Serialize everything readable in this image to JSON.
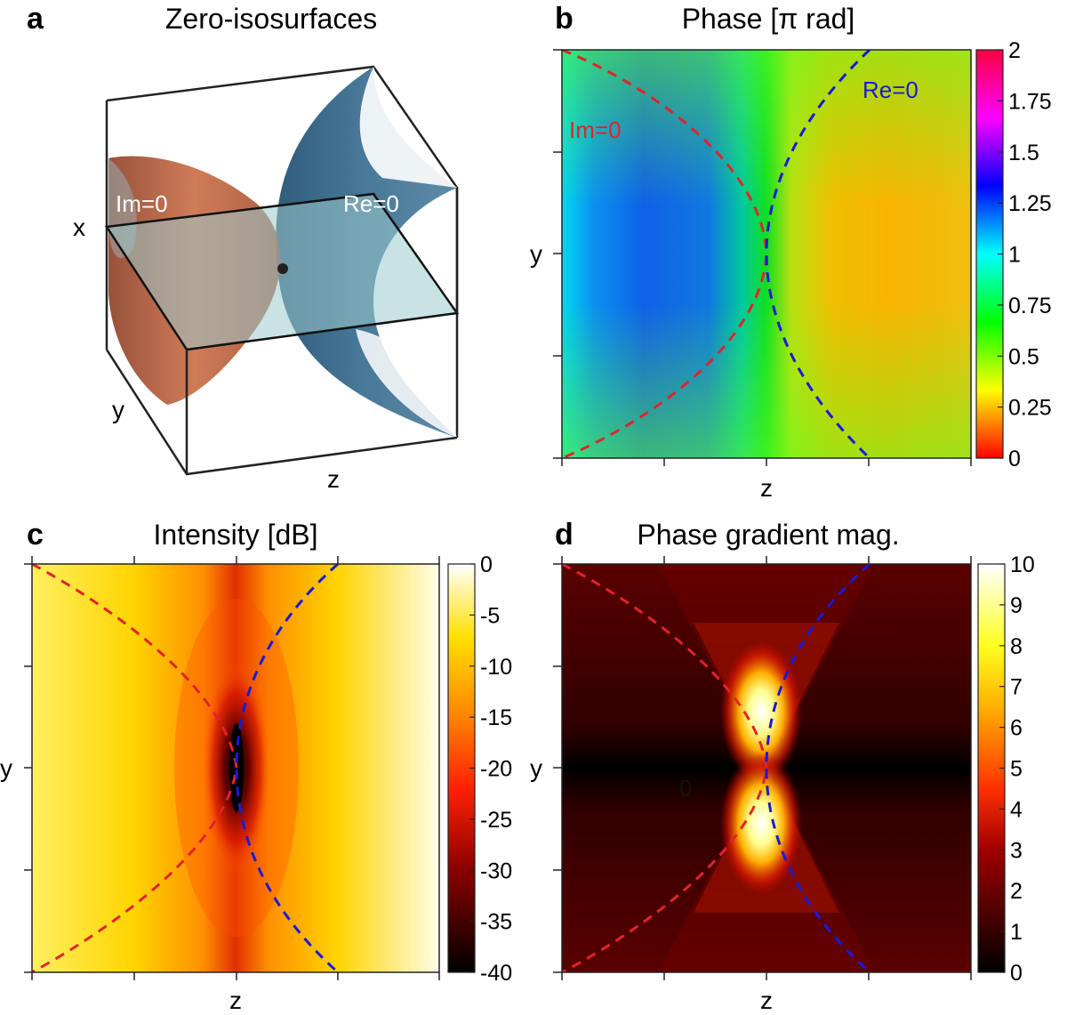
{
  "colors": {
    "im_zero": "#e0242a",
    "re_zero": "#1a1ad6",
    "surface_im": "#b4582f",
    "surface_re": "#2a5878",
    "plane": "#9ccacd"
  },
  "panels": {
    "a": {
      "letter": "a",
      "title": "Zero-isosurfaces",
      "axis_x": "x",
      "axis_y": "y",
      "axis_z": "z",
      "label_im": "Im=0",
      "label_re": "Re=0"
    },
    "b": {
      "letter": "b",
      "title": "Phase [π rad]",
      "xlabel": "z",
      "ylabel": "y"
    },
    "c": {
      "letter": "c",
      "title": "Intensity [dB]",
      "xlabel": "z",
      "ylabel": "y"
    },
    "d": {
      "letter": "d",
      "title": "Phase gradient mag.",
      "xlabel": "z",
      "ylabel": "y",
      "center_label": "0"
    }
  },
  "chart_data": [
    {
      "type": "heatmap",
      "panel": "b",
      "title": "Phase [π rad]",
      "xlabel": "z",
      "ylabel": "y",
      "colorbar": {
        "ticks": [
          "0",
          "0.25",
          "0.5",
          "0.75",
          "1",
          "1.25",
          "1.5",
          "1.75",
          "2"
        ],
        "range": [
          0,
          2
        ],
        "colormap": "hsv"
      },
      "annotations": [
        {
          "text": "Im=0",
          "color": "#e0242a"
        },
        {
          "text": "Re=0",
          "color": "#1a1ad6"
        }
      ],
      "curves": [
        {
          "name": "Im=0",
          "style": "dashed",
          "color": "#e0242a"
        },
        {
          "name": "Re=0",
          "style": "dashed",
          "color": "#1a1ad6"
        }
      ]
    },
    {
      "type": "heatmap",
      "panel": "c",
      "title": "Intensity [dB]",
      "xlabel": "z",
      "ylabel": "y",
      "colorbar": {
        "ticks": [
          "0",
          "-5",
          "-10",
          "-15",
          "-20",
          "-25",
          "-30",
          "-35",
          "-40"
        ],
        "range": [
          -40,
          0
        ],
        "colormap": "hot"
      },
      "curves": [
        {
          "name": "Im=0",
          "style": "dashed",
          "color": "#e0242a"
        },
        {
          "name": "Re=0",
          "style": "dashed",
          "color": "#1a1ad6"
        }
      ]
    },
    {
      "type": "heatmap",
      "panel": "d",
      "title": "Phase gradient mag.",
      "xlabel": "z",
      "ylabel": "y",
      "colorbar": {
        "ticks": [
          "0",
          "1",
          "2",
          "3",
          "4",
          "5",
          "6",
          "7",
          "8",
          "9",
          "10"
        ],
        "range": [
          0,
          10
        ],
        "colormap": "hot"
      },
      "curves": [
        {
          "name": "Im=0",
          "style": "dashed",
          "color": "#e0242a"
        },
        {
          "name": "Re=0",
          "style": "dashed",
          "color": "#1a1ad6"
        }
      ]
    }
  ]
}
